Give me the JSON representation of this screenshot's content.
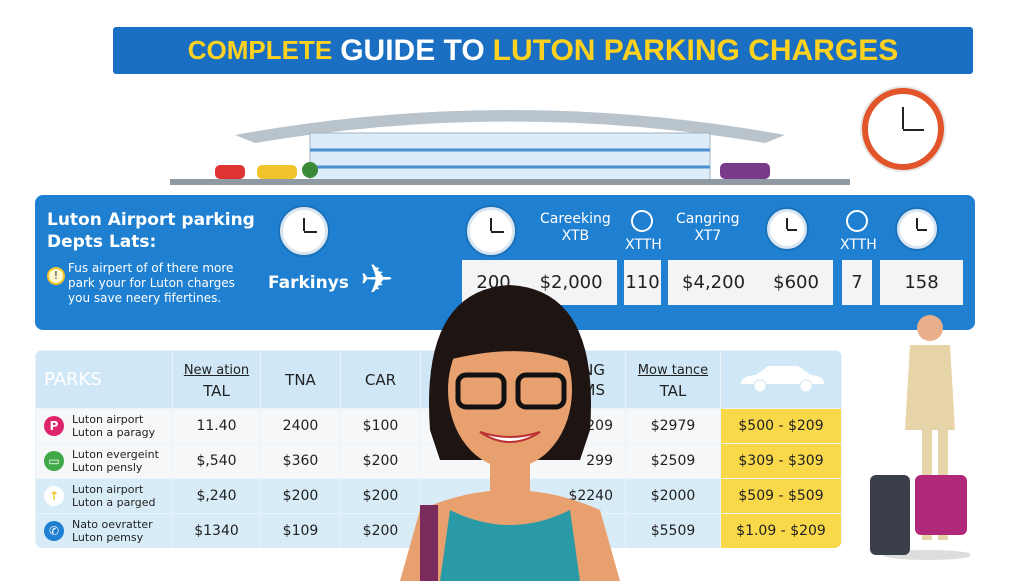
{
  "title": {
    "part1": "COMPLETE",
    "part2": "GUIDE TO",
    "part3": "LUTON PARKING CHARGES"
  },
  "panel": {
    "title_line1": "Luton Airport parking",
    "title_line2": "Depts Lats:",
    "desc_line1": "Fus airpert of of there more",
    "desc_line2": "park your for Luton charges",
    "desc_line3": "you save neery fifertines.",
    "farkinys": "Farkinys",
    "col1": {
      "line1": "Careeking",
      "line2": "XTB"
    },
    "col2": "XTTH",
    "col3": {
      "line1": "Cangring",
      "line2": "XT7"
    },
    "col4": "XTTH",
    "values": [
      "200",
      "$2,000",
      "110",
      "$4,200",
      "$600",
      "7",
      "158"
    ]
  },
  "table": {
    "headers": {
      "parks": "PARKS",
      "sub1": "New ation",
      "tal": "TAL",
      "tna": "TNA",
      "car": "CAR",
      "hidden1": "RKING",
      "hidden2": "MS",
      "sub2": "Mow tance",
      "tal2": "TAL"
    },
    "rows": [
      {
        "name1": "Luton airport",
        "name2": "Luton a paragy",
        "icon": "parking-icon",
        "c1": "11.40",
        "c2": "2400",
        "c3": "$100",
        "c4": "$209",
        "c5": "$2979",
        "c6": "$500 - $209"
      },
      {
        "name1": "Luton evergeint",
        "name2": "Luton pensly",
        "icon": "ticket-icon",
        "c1": "$,540",
        "c2": "$360",
        "c3": "$200",
        "c4": "299",
        "c5": "$2509",
        "c6": "$309 - $309"
      },
      {
        "name1": "Luton airport",
        "name2": "Luton a parged",
        "icon": "arrow-up-icon",
        "c1": "$,240",
        "c2": "$200",
        "c3": "$200",
        "c4": "$2240",
        "c5": "$2000",
        "c6": "$509 - $509"
      },
      {
        "name1": "Nato oevratter",
        "name2": "Luton pemsy",
        "icon": "phone-icon",
        "c1": "$1340",
        "c2": "$109",
        "c3": "$200",
        "c4": "",
        "c5": "$5509",
        "c6": "$1.09 - $209"
      }
    ]
  },
  "colors": {
    "banner": "#1b6fc2",
    "accent": "#ffd21f",
    "panel": "#1f7fd0",
    "highlight": "#f9d84a"
  }
}
